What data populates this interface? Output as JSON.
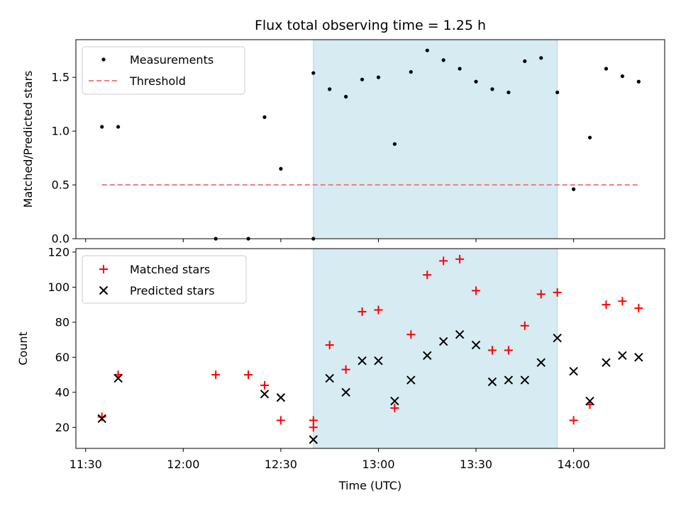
{
  "title": "Flux total observing time = 1.25 h",
  "colors": {
    "measurement": "#000000",
    "threshold": "#f08080",
    "matched": "#ff0000",
    "predicted": "#000000",
    "highlight": "#add8e6"
  },
  "chart_data": [
    {
      "type": "scatter",
      "ylabel": "Matched/Predicted stars",
      "xlabel": "",
      "ylim": [
        0,
        1.85
      ],
      "yticks": [
        0.0,
        0.5,
        1.0,
        1.5
      ],
      "ytick_labels": [
        "0.0",
        "0.5",
        "1.0",
        "1.5"
      ],
      "legend": {
        "position": "top-left",
        "entries": [
          "Measurements",
          "Threshold"
        ]
      },
      "highlight_span": [
        "12:40",
        "13:55"
      ],
      "threshold": {
        "value": 0.5,
        "x_range": [
          "11:35",
          "14:20"
        ]
      },
      "series": [
        {
          "name": "Measurements",
          "x": [
            "11:35",
            "11:40",
            "12:10",
            "12:20",
            "12:25",
            "12:30",
            "12:40",
            "12:40",
            "12:45",
            "12:50",
            "12:55",
            "13:00",
            "13:05",
            "13:10",
            "13:15",
            "13:20",
            "13:25",
            "13:30",
            "13:35",
            "13:40",
            "13:45",
            "13:50",
            "13:55",
            "14:00",
            "14:05",
            "14:10",
            "14:15",
            "14:20"
          ],
          "y": [
            1.04,
            1.04,
            0.0,
            0.0,
            1.13,
            0.65,
            0.0,
            1.54,
            1.39,
            1.32,
            1.48,
            1.5,
            0.88,
            1.55,
            1.75,
            1.66,
            1.58,
            1.46,
            1.39,
            1.36,
            1.65,
            1.68,
            1.36,
            0.46,
            0.94,
            1.58,
            1.51,
            1.46
          ]
        }
      ]
    },
    {
      "type": "scatter",
      "ylabel": "Count",
      "xlabel": "Time (UTC)",
      "ylim": [
        8,
        122
      ],
      "yticks": [
        20,
        40,
        60,
        80,
        100,
        120
      ],
      "ytick_labels": [
        "20",
        "40",
        "60",
        "80",
        "100",
        "120"
      ],
      "xlim": [
        "11:27",
        "14:28"
      ],
      "xticks": [
        "11:30",
        "12:00",
        "12:30",
        "13:00",
        "13:30",
        "14:00"
      ],
      "xtick_labels": [
        "11:30",
        "12:00",
        "12:30",
        "13:00",
        "13:30",
        "14:00"
      ],
      "legend": {
        "position": "top-left",
        "entries": [
          "Matched stars",
          "Predicted stars"
        ]
      },
      "highlight_span": [
        "12:40",
        "13:55"
      ],
      "series": [
        {
          "name": "Matched stars",
          "x": [
            "11:35",
            "11:40",
            "12:10",
            "12:20",
            "12:25",
            "12:30",
            "12:40",
            "12:40",
            "12:45",
            "12:50",
            "12:55",
            "13:00",
            "13:05",
            "13:10",
            "13:15",
            "13:20",
            "13:25",
            "13:30",
            "13:35",
            "13:40",
            "13:45",
            "13:50",
            "13:55",
            "14:00",
            "14:05",
            "14:10",
            "14:15",
            "14:20"
          ],
          "y": [
            26,
            50,
            50,
            50,
            44,
            24,
            24,
            20,
            67,
            53,
            86,
            87,
            31,
            73,
            107,
            115,
            116,
            98,
            64,
            64,
            78,
            96,
            97,
            24,
            33,
            90,
            92,
            88
          ]
        },
        {
          "name": "Predicted stars",
          "x": [
            "11:35",
            "11:40",
            "12:25",
            "12:30",
            "12:40",
            "12:45",
            "12:50",
            "12:55",
            "13:00",
            "13:05",
            "13:10",
            "13:15",
            "13:20",
            "13:25",
            "13:30",
            "13:35",
            "13:40",
            "13:45",
            "13:50",
            "13:55",
            "14:00",
            "14:05",
            "14:10",
            "14:15",
            "14:20"
          ],
          "y": [
            25,
            48,
            39,
            37,
            13,
            48,
            40,
            58,
            58,
            35,
            47,
            61,
            69,
            73,
            67,
            46,
            47,
            47,
            57,
            71,
            52,
            35,
            57,
            61,
            60
          ]
        }
      ]
    }
  ]
}
